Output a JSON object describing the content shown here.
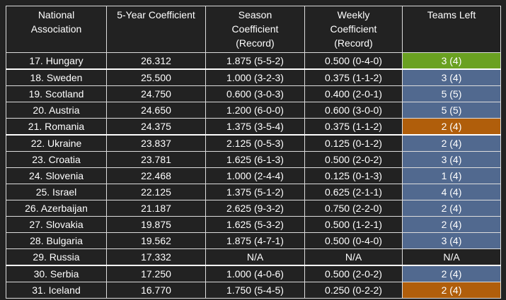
{
  "table": {
    "headers": [
      "National\nAssociation",
      "5-Year Coefficient",
      "Season\nCoefficient\n(Record)",
      "Weekly\nCoefficient\n(Record)",
      "Teams Left"
    ],
    "rows": [
      [
        "17. Hungary",
        "26.312",
        "1.875 (5-5-2)",
        "0.500 (0-4-0)",
        "3 (4)"
      ],
      [
        "18. Sweden",
        "25.500",
        "1.000 (3-2-3)",
        "0.375 (1-1-2)",
        "3 (4)"
      ],
      [
        "19. Scotland",
        "24.750",
        "0.600 (3-0-3)",
        "0.400 (2-0-1)",
        "5 (5)"
      ],
      [
        "20. Austria",
        "24.650",
        "1.200 (6-0-0)",
        "0.600 (3-0-0)",
        "5 (5)"
      ],
      [
        "21. Romania",
        "24.375",
        "1.375 (3-5-4)",
        "0.375 (1-1-2)",
        "2 (4)"
      ],
      [
        "22. Ukraine",
        "23.837",
        "2.125 (0-5-3)",
        "0.125 (0-1-2)",
        "2 (4)"
      ],
      [
        "23. Croatia",
        "23.781",
        "1.625 (6-1-3)",
        "0.500 (2-0-2)",
        "3 (4)"
      ],
      [
        "24. Slovenia",
        "22.468",
        "1.000 (2-4-4)",
        "0.125 (0-1-3)",
        "1 (4)"
      ],
      [
        "25. Israel",
        "22.125",
        "1.375 (5-1-2)",
        "0.625 (2-1-1)",
        "4 (4)"
      ],
      [
        "26. Azerbaijan",
        "21.187",
        "2.625 (9-3-2)",
        "0.750 (2-2-0)",
        "2 (4)"
      ],
      [
        "27. Slovakia",
        "19.875",
        "1.625 (5-3-2)",
        "0.500 (1-2-1)",
        "2 (4)"
      ],
      [
        "28. Bulgaria",
        "19.562",
        "1.875 (4-7-1)",
        "0.500 (0-4-0)",
        "3 (4)"
      ],
      [
        "29. Russia",
        "17.332",
        "N/A",
        "N/A",
        "N/A"
      ],
      [
        "30. Serbia",
        "17.250",
        "1.000 (4-0-6)",
        "0.500 (2-0-2)",
        "2 (4)"
      ],
      [
        "31. Iceland",
        "16.770",
        "1.750 (5-4-5)",
        "0.250 (0-2-2)",
        "2 (4)"
      ]
    ],
    "teams_left_colors": [
      "#6aa121",
      "#51698f",
      "#51698f",
      "#51698f",
      "#b05e0b",
      "#51698f",
      "#51698f",
      "#51698f",
      "#51698f",
      "#51698f",
      "#51698f",
      "#51698f",
      null,
      "#51698f",
      "#b05e0b"
    ]
  }
}
